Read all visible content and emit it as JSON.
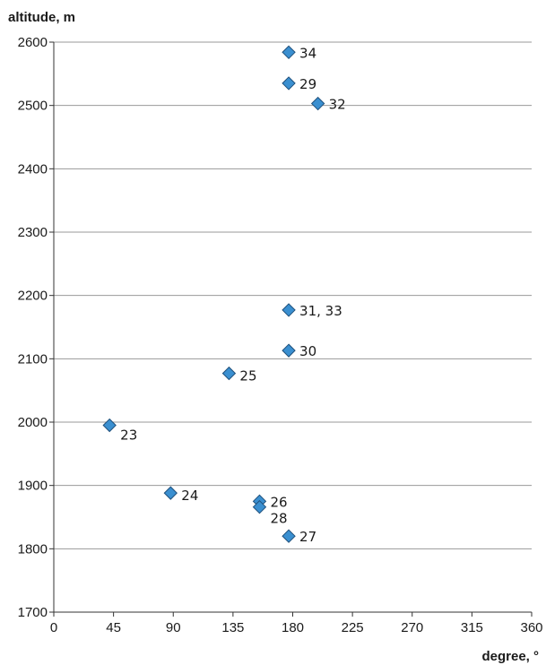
{
  "chart_data": {
    "type": "scatter",
    "title": "",
    "ylabel": "altitude, m",
    "xlabel": "degree, °",
    "xlim": [
      0,
      360
    ],
    "ylim": [
      1700,
      2600
    ],
    "x_ticks": [
      "0",
      "45",
      "90",
      "135",
      "180",
      "225",
      "270",
      "315",
      "360"
    ],
    "y_ticks": [
      "1700",
      "1800",
      "1900",
      "2000",
      "2100",
      "2200",
      "2300",
      "2400",
      "2500",
      "2600"
    ],
    "grid": "horizontal",
    "marker": "diamond",
    "marker_color": "#3a8fd0",
    "points": [
      {
        "label": "34",
        "x": 177,
        "y": 2584
      },
      {
        "label": "29",
        "x": 177,
        "y": 2535
      },
      {
        "label": "32",
        "x": 199,
        "y": 2503
      },
      {
        "label": "31, 33",
        "x": 177,
        "y": 2177
      },
      {
        "label": "30",
        "x": 177,
        "y": 2113
      },
      {
        "label": "25",
        "x": 132,
        "y": 2077
      },
      {
        "label": "23",
        "x": 42,
        "y": 1995
      },
      {
        "label": "24",
        "x": 88,
        "y": 1888
      },
      {
        "label": "26",
        "x": 155,
        "y": 1875
      },
      {
        "label": "28",
        "x": 155,
        "y": 1866
      },
      {
        "label": "27",
        "x": 177,
        "y": 1820
      }
    ]
  }
}
